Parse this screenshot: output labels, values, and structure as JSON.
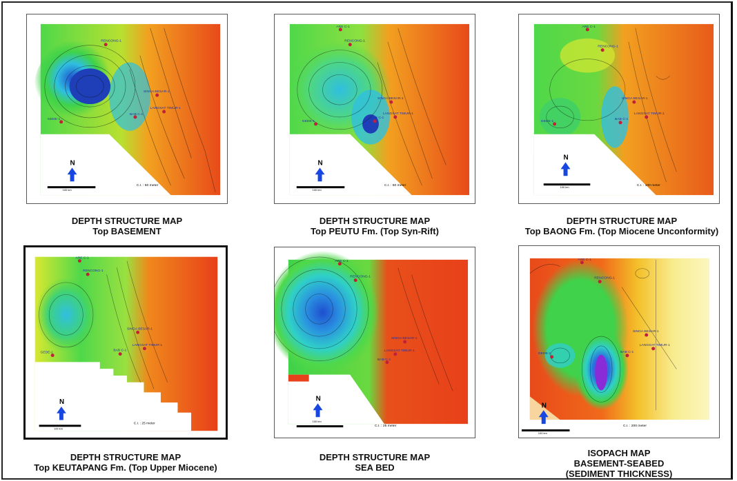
{
  "panels": [
    {
      "id": "basement",
      "wells": [
        "RENCONG-1",
        "SINGA BESAR-1",
        "LANGSAT TIMUR-1",
        "BAB C-1",
        "GEDE-1"
      ],
      "north_label": "N",
      "scale_label": "100 km",
      "ci_label": "C.I. : 50 meter",
      "caption_line1": "DEPTH STRUCTURE MAP",
      "caption_line2": "Top BASEMENT",
      "caption_line3": ""
    },
    {
      "id": "peutu",
      "wells": [
        "ARE C-1",
        "RENCONG-1",
        "SINGA BESAR-1",
        "LANGSAT TIMUR-1",
        "BAB C-1",
        "GEDE-1"
      ],
      "north_label": "N",
      "scale_label": "100 km",
      "ci_label": "C.I. : 50 meter",
      "caption_line1": "DEPTH STRUCTURE MAP",
      "caption_line2": "Top PEUTU Fm. (Top Syn-Rift)",
      "caption_line3": ""
    },
    {
      "id": "baong",
      "wells": [
        "ARE C-1",
        "RENCONG-1",
        "SINGA BESAR-1",
        "LANGSAT TIMUR-1",
        "BAB C-1",
        "GEDE-1"
      ],
      "north_label": "N",
      "scale_label": "100 km",
      "ci_label": "C.I. : 100 meter",
      "caption_line1": "DEPTH STRUCTURE MAP",
      "caption_line2": "Top BAONG Fm. (Top Miocene Unconformity)",
      "caption_line3": ""
    },
    {
      "id": "keutapang",
      "wells": [
        "ARE C-1",
        "RENCONG-1",
        "SINGA BESAR-1",
        "LANGSAT TIMUR-1",
        "BAB C-1",
        "GEDE-1"
      ],
      "north_label": "N",
      "scale_label": "100 km",
      "ci_label": "C.I. : 25 meter",
      "caption_line1": "DEPTH STRUCTURE MAP",
      "caption_line2": "Top KEUTAPANG Fm. (Top Upper Miocene)",
      "caption_line3": ""
    },
    {
      "id": "seabed",
      "wells": [
        "ARE C-1",
        "RENCONG-1",
        "SINGA BESAR-1",
        "LANGSAT TIMUR-1",
        "BAB C-1"
      ],
      "north_label": "N",
      "scale_label": "100 km",
      "ci_label": "C.I. : 25 meter",
      "caption_line1": "DEPTH STRUCTURE MAP",
      "caption_line2": "SEA BED",
      "caption_line3": ""
    },
    {
      "id": "isopach",
      "wells": [
        "ARE C-1",
        "RENCONG-1",
        "SINGA BESAR-1",
        "LANGSAT TIMUR-1",
        "BAB C-1",
        "GEDE-1"
      ],
      "north_label": "N",
      "scale_label": "100 km",
      "ci_label": "C.I. : 200 meter",
      "caption_line1": "ISOPACH MAP",
      "caption_line2": "BASEMENT-SEABED",
      "caption_line3": "(SEDIMENT THICKNESS)"
    }
  ],
  "colors": {
    "deep": "#1e5bd6",
    "mid_deep": "#2fc7e0",
    "mid": "#3fd24a",
    "shallow_mid": "#d8e830",
    "shallow": "#f07a1c",
    "shallowest": "#e83a1a",
    "thick": "#8a2bd8",
    "thin": "#fbf6b0"
  },
  "icons": {
    "north_arrow": "north-arrow-icon",
    "well": "well-marker-icon"
  }
}
